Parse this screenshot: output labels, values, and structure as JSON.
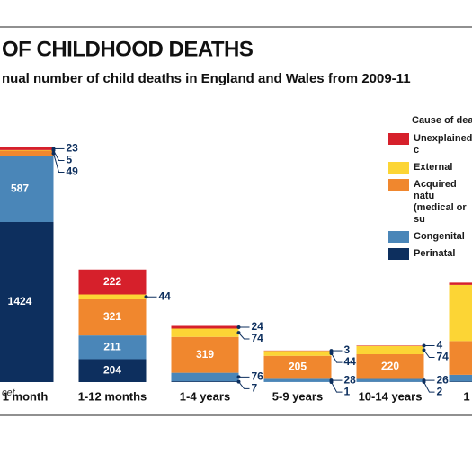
{
  "chart_data": {
    "type": "stacked-bar",
    "title": "OF CHILDHOOD DEATHS",
    "subtitle": "nual number of child deaths in England and Wales from 2009-11",
    "legend_title": "Cause of deat",
    "source": "cet",
    "categories": [
      "1 month",
      "1-12 months",
      "1-4 years",
      "5-9 years",
      "10-14 years",
      "1"
    ],
    "series": [
      {
        "name": "Perinatal",
        "color": "#0d2f5e",
        "values": [
          1424,
          204,
          7,
          1,
          2,
          5
        ]
      },
      {
        "name": "Congenital",
        "color": "#4a86b8",
        "values": [
          587,
          211,
          76,
          28,
          26,
          60
        ]
      },
      {
        "name": "Acquired natu\n(medical or su",
        "color": "#f0872e",
        "values": [
          49,
          321,
          319,
          205,
          220,
          300
        ]
      },
      {
        "name": "External",
        "color": "#fcd535",
        "values": [
          5,
          44,
          74,
          44,
          74,
          500
        ]
      },
      {
        "name": "Unexplained c",
        "color": "#d6202b",
        "values": [
          23,
          222,
          24,
          3,
          4,
          20
        ]
      }
    ]
  }
}
